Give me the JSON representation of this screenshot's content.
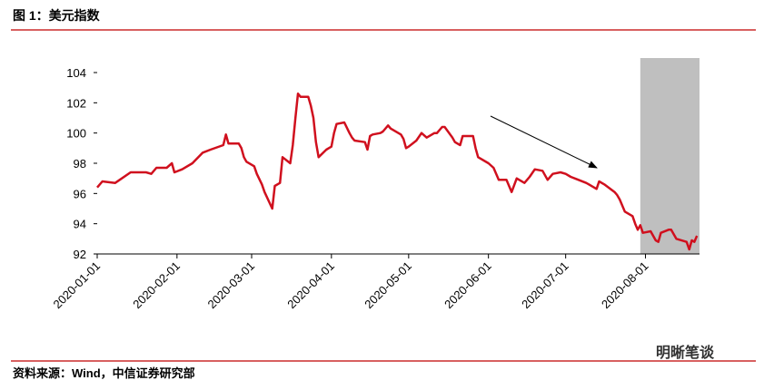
{
  "chart_data": {
    "type": "line",
    "title": "图 1：美元指数",
    "source": "资料来源：Wind，中信证券研究部",
    "watermark": "明晰笔谈",
    "x": [
      "2020-01-01",
      "2020-01-03",
      "2020-01-08",
      "2020-01-14",
      "2020-01-20",
      "2020-01-22",
      "2020-01-24",
      "2020-01-28",
      "2020-01-30",
      "2020-01-31",
      "2020-02-03",
      "2020-02-07",
      "2020-02-11",
      "2020-02-14",
      "2020-02-19",
      "2020-02-20",
      "2020-02-21",
      "2020-02-25",
      "2020-02-26",
      "2020-02-27",
      "2020-02-28",
      "2020-03-02",
      "2020-03-03",
      "2020-03-05",
      "2020-03-06",
      "2020-03-09",
      "2020-03-10",
      "2020-03-12",
      "2020-03-13",
      "2020-03-16",
      "2020-03-17",
      "2020-03-18",
      "2020-03-19",
      "2020-03-20",
      "2020-03-23",
      "2020-03-24",
      "2020-03-25",
      "2020-03-26",
      "2020-03-27",
      "2020-03-30",
      "2020-03-31",
      "2020-04-01",
      "2020-04-02",
      "2020-04-03",
      "2020-04-06",
      "2020-04-08",
      "2020-04-09",
      "2020-04-10",
      "2020-04-14",
      "2020-04-15",
      "2020-04-16",
      "2020-04-17",
      "2020-04-20",
      "2020-04-21",
      "2020-04-23",
      "2020-04-24",
      "2020-04-28",
      "2020-04-29",
      "2020-04-30",
      "2020-05-01",
      "2020-05-04",
      "2020-05-06",
      "2020-05-08",
      "2020-05-11",
      "2020-05-12",
      "2020-05-14",
      "2020-05-15",
      "2020-05-18",
      "2020-05-19",
      "2020-05-21",
      "2020-05-22",
      "2020-05-26",
      "2020-05-27",
      "2020-05-28",
      "2020-06-01",
      "2020-06-03",
      "2020-06-05",
      "2020-06-08",
      "2020-06-10",
      "2020-06-12",
      "2020-06-15",
      "2020-06-17",
      "2020-06-19",
      "2020-06-22",
      "2020-06-24",
      "2020-06-26",
      "2020-06-29",
      "2020-07-01",
      "2020-07-03",
      "2020-07-06",
      "2020-07-09",
      "2020-07-10",
      "2020-07-13",
      "2020-07-14",
      "2020-07-16",
      "2020-07-20",
      "2020-07-21",
      "2020-07-22",
      "2020-07-24",
      "2020-07-27",
      "2020-07-28",
      "2020-07-29",
      "2020-07-30",
      "2020-07-31",
      "2020-08-03",
      "2020-08-05",
      "2020-08-06",
      "2020-08-07",
      "2020-08-10",
      "2020-08-11",
      "2020-08-13",
      "2020-08-17",
      "2020-08-18",
      "2020-08-19",
      "2020-08-20",
      "2020-08-21"
    ],
    "series": [
      {
        "color": "#d0101e",
        "values": [
          96.4,
          96.8,
          96.7,
          97.4,
          97.4,
          97.3,
          97.7,
          97.7,
          98.0,
          97.4,
          97.6,
          98.0,
          98.7,
          98.9,
          99.2,
          99.9,
          99.3,
          99.3,
          99.0,
          98.4,
          98.1,
          97.8,
          97.3,
          96.6,
          96.1,
          95.0,
          96.5,
          96.7,
          98.4,
          98.0,
          99.2,
          101.0,
          102.6,
          102.4,
          102.4,
          101.8,
          101.0,
          99.4,
          98.4,
          98.9,
          99.0,
          99.1,
          100.0,
          100.6,
          100.7,
          100.0,
          99.7,
          99.5,
          99.4,
          98.9,
          99.8,
          99.9,
          100.0,
          100.1,
          100.5,
          100.3,
          99.9,
          99.6,
          99.0,
          99.1,
          99.5,
          100.0,
          99.7,
          100.0,
          100.0,
          100.4,
          100.4,
          99.7,
          99.4,
          99.2,
          99.8,
          99.8,
          99.0,
          98.4,
          98.0,
          97.7,
          96.9,
          96.9,
          96.1,
          97.0,
          96.7,
          97.1,
          97.6,
          97.5,
          96.9,
          97.3,
          97.4,
          97.3,
          97.1,
          96.9,
          96.7,
          96.6,
          96.3,
          96.8,
          96.6,
          96.1,
          95.9,
          95.6,
          94.8,
          94.5,
          94.0,
          93.6,
          93.9,
          93.4,
          93.5,
          92.9,
          92.8,
          93.4,
          93.6,
          93.6,
          93.0,
          92.8,
          92.3,
          92.9,
          92.8,
          93.2
        ]
      }
    ],
    "xlim": [
      "2020-01-01",
      "2020-08-22"
    ],
    "xticks": [
      "2020-01-01",
      "2020-02-01",
      "2020-03-01",
      "2020-04-01",
      "2020-05-01",
      "2020-06-01",
      "2020-07-01",
      "2020-08-01"
    ],
    "ylim": [
      92,
      104
    ],
    "yticks": [
      92,
      94,
      96,
      98,
      100,
      102,
      104
    ],
    "highlight": [
      "2020-07-30",
      "2020-08-22"
    ],
    "highlight_color": "#bfbfbf"
  }
}
